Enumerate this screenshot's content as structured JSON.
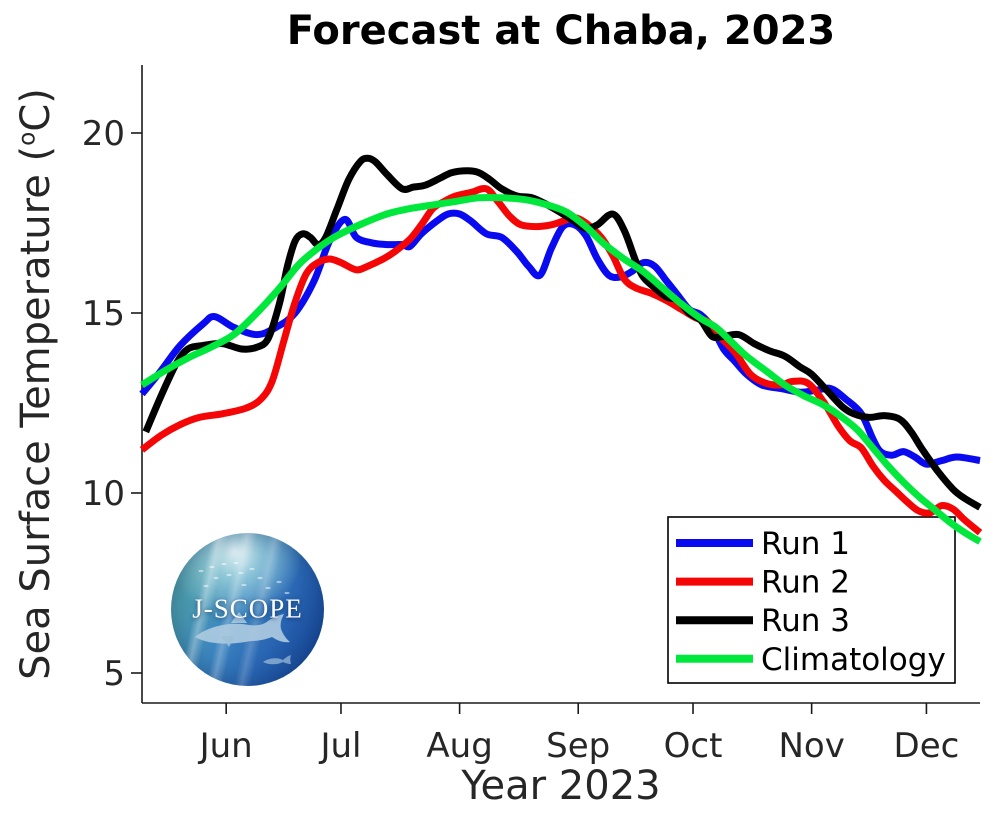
{
  "title": "Forecast at Chaba, 2023",
  "logo": {
    "text": "J-SCOPE"
  },
  "chart_data": {
    "type": "line",
    "title": "Forecast at Chaba, 2023",
    "xlabel": "Year 2023",
    "ylabel": "Sea Surface Temperature (°C)",
    "ylabel_parts": {
      "pre": "Sea Surface Temperature (",
      "sup": "o",
      "post": "C)"
    },
    "grid": false,
    "legend_position": "bottom-right",
    "ylim": [
      4.2,
      21.9
    ],
    "yticks": [
      20,
      15,
      10,
      5
    ],
    "x_domain_days": [
      0,
      219
    ],
    "xticks": [
      {
        "label": "Jun",
        "day": 22
      },
      {
        "label": "Jul",
        "day": 52
      },
      {
        "label": "Aug",
        "day": 83
      },
      {
        "label": "Sep",
        "day": 114
      },
      {
        "label": "Oct",
        "day": 144
      },
      {
        "label": "Nov",
        "day": 175
      },
      {
        "label": "Dec",
        "day": 205
      }
    ],
    "series": [
      {
        "name": "Run 1",
        "color": "#0a0af0",
        "points": [
          [
            0,
            12.75
          ],
          [
            5,
            13.4
          ],
          [
            10,
            14.1
          ],
          [
            16,
            14.7
          ],
          [
            19,
            14.9
          ],
          [
            24,
            14.6
          ],
          [
            30,
            14.4
          ],
          [
            35,
            14.6
          ],
          [
            40,
            15.0
          ],
          [
            45,
            15.9
          ],
          [
            49,
            17.0
          ],
          [
            53,
            17.6
          ],
          [
            56,
            17.1
          ],
          [
            60,
            16.95
          ],
          [
            64,
            16.9
          ],
          [
            68,
            16.9
          ],
          [
            70,
            16.85
          ],
          [
            73,
            17.2
          ],
          [
            77,
            17.55
          ],
          [
            80,
            17.75
          ],
          [
            83,
            17.75
          ],
          [
            86,
            17.55
          ],
          [
            90,
            17.2
          ],
          [
            94,
            17.1
          ],
          [
            98,
            16.7
          ],
          [
            101,
            16.3
          ],
          [
            104,
            16.05
          ],
          [
            107,
            16.8
          ],
          [
            110,
            17.4
          ],
          [
            113,
            17.45
          ],
          [
            116,
            17.15
          ],
          [
            119,
            16.5
          ],
          [
            122,
            16.05
          ],
          [
            125,
            16.0
          ],
          [
            128,
            16.15
          ],
          [
            131,
            16.4
          ],
          [
            134,
            16.3
          ],
          [
            137,
            15.9
          ],
          [
            140,
            15.5
          ],
          [
            143,
            15.1
          ],
          [
            146,
            14.95
          ],
          [
            149,
            14.6
          ],
          [
            152,
            14.0
          ],
          [
            155,
            13.65
          ],
          [
            158,
            13.3
          ],
          [
            162,
            13.0
          ],
          [
            167,
            12.9
          ],
          [
            172,
            12.8
          ],
          [
            176,
            12.85
          ],
          [
            180,
            12.9
          ],
          [
            184,
            12.6
          ],
          [
            188,
            12.2
          ],
          [
            191,
            11.5
          ],
          [
            193,
            11.15
          ],
          [
            196,
            11.05
          ],
          [
            199,
            11.15
          ],
          [
            202,
            11.0
          ],
          [
            205,
            10.8
          ],
          [
            209,
            10.9
          ],
          [
            213,
            11.0
          ],
          [
            219,
            10.9
          ]
        ]
      },
      {
        "name": "Run 2",
        "color": "#f40606",
        "points": [
          [
            0,
            11.2
          ],
          [
            5,
            11.6
          ],
          [
            10,
            11.9
          ],
          [
            15,
            12.1
          ],
          [
            21,
            12.2
          ],
          [
            27,
            12.35
          ],
          [
            31,
            12.6
          ],
          [
            34,
            13.1
          ],
          [
            37,
            14.2
          ],
          [
            40,
            15.3
          ],
          [
            43,
            16.1
          ],
          [
            46,
            16.4
          ],
          [
            49,
            16.5
          ],
          [
            52,
            16.4
          ],
          [
            56,
            16.2
          ],
          [
            59,
            16.3
          ],
          [
            63,
            16.5
          ],
          [
            66,
            16.7
          ],
          [
            70,
            17.05
          ],
          [
            73,
            17.45
          ],
          [
            76,
            17.9
          ],
          [
            79,
            18.1
          ],
          [
            82,
            18.25
          ],
          [
            86,
            18.35
          ],
          [
            90,
            18.45
          ],
          [
            93,
            18.1
          ],
          [
            96,
            17.7
          ],
          [
            99,
            17.45
          ],
          [
            103,
            17.4
          ],
          [
            107,
            17.45
          ],
          [
            110,
            17.55
          ],
          [
            113,
            17.65
          ],
          [
            116,
            17.5
          ],
          [
            120,
            17.1
          ],
          [
            123,
            16.6
          ],
          [
            126,
            15.95
          ],
          [
            129,
            15.7
          ],
          [
            133,
            15.55
          ],
          [
            137,
            15.35
          ],
          [
            141,
            15.1
          ],
          [
            145,
            14.85
          ],
          [
            148,
            14.75
          ],
          [
            151,
            14.35
          ],
          [
            155,
            13.9
          ],
          [
            159,
            13.3
          ],
          [
            163,
            13.05
          ],
          [
            167,
            13.0
          ],
          [
            170,
            13.1
          ],
          [
            174,
            13.05
          ],
          [
            178,
            12.55
          ],
          [
            182,
            11.85
          ],
          [
            185,
            11.45
          ],
          [
            188,
            11.25
          ],
          [
            191,
            10.75
          ],
          [
            194,
            10.35
          ],
          [
            197,
            10.05
          ],
          [
            200,
            9.75
          ],
          [
            203,
            9.5
          ],
          [
            206,
            9.45
          ],
          [
            209,
            9.65
          ],
          [
            212,
            9.55
          ],
          [
            215,
            9.25
          ],
          [
            219,
            8.9
          ]
        ]
      },
      {
        "name": "Run 3",
        "color": "#000000",
        "points": [
          [
            1,
            11.7
          ],
          [
            5,
            12.7
          ],
          [
            9,
            13.6
          ],
          [
            12,
            14.0
          ],
          [
            16,
            14.1
          ],
          [
            21,
            14.15
          ],
          [
            26,
            14.0
          ],
          [
            30,
            14.05
          ],
          [
            33,
            14.3
          ],
          [
            36,
            15.3
          ],
          [
            38,
            16.3
          ],
          [
            40,
            17.0
          ],
          [
            42,
            17.2
          ],
          [
            44,
            17.1
          ],
          [
            46,
            16.9
          ],
          [
            48,
            17.1
          ],
          [
            51,
            17.9
          ],
          [
            54,
            18.7
          ],
          [
            57,
            19.2
          ],
          [
            59,
            19.3
          ],
          [
            61,
            19.2
          ],
          [
            64,
            18.85
          ],
          [
            68,
            18.45
          ],
          [
            71,
            18.5
          ],
          [
            74,
            18.55
          ],
          [
            78,
            18.75
          ],
          [
            81,
            18.9
          ],
          [
            85,
            18.95
          ],
          [
            88,
            18.9
          ],
          [
            91,
            18.7
          ],
          [
            94,
            18.45
          ],
          [
            98,
            18.25
          ],
          [
            102,
            18.2
          ],
          [
            106,
            18.0
          ],
          [
            110,
            17.75
          ],
          [
            113,
            17.55
          ],
          [
            116,
            17.35
          ],
          [
            119,
            17.45
          ],
          [
            123,
            17.75
          ],
          [
            126,
            17.3
          ],
          [
            129,
            16.45
          ],
          [
            131,
            16.0
          ],
          [
            134,
            15.7
          ],
          [
            137,
            15.45
          ],
          [
            140,
            15.35
          ],
          [
            143,
            15.0
          ],
          [
            146,
            14.8
          ],
          [
            149,
            14.35
          ],
          [
            152,
            14.35
          ],
          [
            156,
            14.4
          ],
          [
            160,
            14.15
          ],
          [
            164,
            13.95
          ],
          [
            168,
            13.8
          ],
          [
            172,
            13.5
          ],
          [
            175,
            13.3
          ],
          [
            179,
            12.85
          ],
          [
            183,
            12.4
          ],
          [
            186,
            12.2
          ],
          [
            190,
            12.1
          ],
          [
            194,
            12.15
          ],
          [
            198,
            12.05
          ],
          [
            201,
            11.7
          ],
          [
            204,
            11.2
          ],
          [
            208,
            10.6
          ],
          [
            212,
            10.1
          ],
          [
            215,
            9.85
          ],
          [
            219,
            9.6
          ]
        ]
      },
      {
        "name": "Climatology",
        "color": "#00e83c",
        "points": [
          [
            0,
            13.0
          ],
          [
            6,
            13.4
          ],
          [
            12,
            13.75
          ],
          [
            18,
            14.05
          ],
          [
            24,
            14.4
          ],
          [
            30,
            15.0
          ],
          [
            36,
            15.7
          ],
          [
            41,
            16.35
          ],
          [
            46,
            16.8
          ],
          [
            51,
            17.15
          ],
          [
            58,
            17.5
          ],
          [
            64,
            17.75
          ],
          [
            70,
            17.9
          ],
          [
            76,
            18.0
          ],
          [
            82,
            18.1
          ],
          [
            88,
            18.2
          ],
          [
            94,
            18.2
          ],
          [
            100,
            18.15
          ],
          [
            106,
            18.0
          ],
          [
            111,
            17.8
          ],
          [
            116,
            17.4
          ],
          [
            121,
            16.9
          ],
          [
            126,
            16.5
          ],
          [
            131,
            16.15
          ],
          [
            136,
            15.7
          ],
          [
            141,
            15.25
          ],
          [
            146,
            14.85
          ],
          [
            150,
            14.6
          ],
          [
            154,
            14.2
          ],
          [
            158,
            13.8
          ],
          [
            163,
            13.4
          ],
          [
            168,
            13.0
          ],
          [
            173,
            12.7
          ],
          [
            178,
            12.45
          ],
          [
            183,
            12.1
          ],
          [
            187,
            11.75
          ],
          [
            191,
            11.25
          ],
          [
            195,
            10.75
          ],
          [
            199,
            10.3
          ],
          [
            203,
            9.9
          ],
          [
            207,
            9.55
          ],
          [
            211,
            9.2
          ],
          [
            215,
            8.9
          ],
          [
            219,
            8.65
          ]
        ]
      }
    ]
  }
}
